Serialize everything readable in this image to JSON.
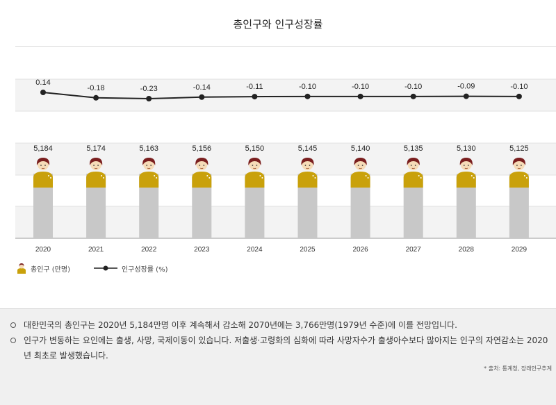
{
  "chart_data": {
    "type": "bar+line",
    "title": "총인구와 인구성장률",
    "categories": [
      "2020",
      "2021",
      "2022",
      "2023",
      "2024",
      "2025",
      "2026",
      "2027",
      "2028",
      "2029"
    ],
    "series": [
      {
        "name": "총인구 (만명)",
        "type": "bar",
        "values": [
          5184,
          5174,
          5163,
          5156,
          5150,
          5145,
          5140,
          5135,
          5130,
          5125
        ],
        "labels": [
          "5,184",
          "5,174",
          "5,163",
          "5,156",
          "5,150",
          "5,145",
          "5,140",
          "5,135",
          "5,130",
          "5,125"
        ]
      },
      {
        "name": "인구성장률 (%)",
        "type": "line",
        "values": [
          0.14,
          -0.18,
          -0.23,
          -0.14,
          -0.11,
          -0.1,
          -0.1,
          -0.1,
          -0.09,
          -0.1
        ],
        "labels": [
          "0.14",
          "-0.18",
          "-0.23",
          "-0.14",
          "-0.11",
          "-0.10",
          "-0.10",
          "-0.10",
          "-0.09",
          "-0.10"
        ]
      }
    ],
    "xlabel": "",
    "ylabel": "",
    "legend_position": "bottom-left"
  },
  "legend": {
    "population": "총인구 (만명)",
    "growth": "인구성장률 (%)"
  },
  "notes": [
    "대한민국의 총인구는 2020년 5,184만명 이후 계속해서 감소해 2070년에는 3,766만명(1979년 수준)에 이를 전망입니다.",
    "인구가 변동하는 요인에는 출생, 사망, 국제이동이 있습니다. 저출생·고령화의 심화에 따라 사망자수가 출생아수보다 많아지는 인구의 자연감소는 2020년 최초로 발생했습니다."
  ],
  "source": "* 출처: 통계청, 장래인구추계",
  "colors": {
    "bar": "#c8c8c8",
    "shirt": "#c9a10b",
    "hair": "#7a1f1f",
    "skin": "#f6dcb8",
    "line": "#222222",
    "band": "#f3f3f3"
  }
}
